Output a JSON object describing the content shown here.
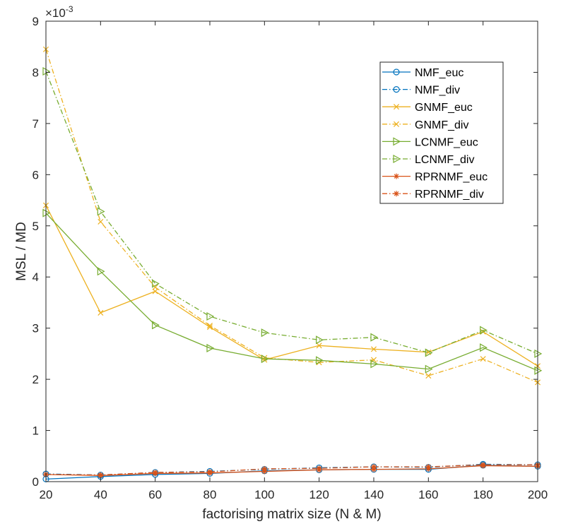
{
  "chart_data": {
    "type": "line",
    "title": "",
    "xlabel": "factorising matrix size (N & M)",
    "ylabel": "MSL / MD",
    "exponent_label": "×10",
    "exponent_power": "-3",
    "x": [
      20,
      40,
      60,
      80,
      100,
      120,
      140,
      160,
      180,
      200
    ],
    "xlim": [
      20,
      200
    ],
    "ylim": [
      0,
      9
    ],
    "xticks": [
      "20",
      "40",
      "60",
      "80",
      "100",
      "120",
      "140",
      "160",
      "180",
      "200"
    ],
    "yticks": [
      "0",
      "1",
      "2",
      "3",
      "4",
      "5",
      "6",
      "7",
      "8",
      "9"
    ],
    "legend_position": "top-right",
    "series": [
      {
        "name": "NMF_euc",
        "color": "#0072BD",
        "dash": "solid",
        "marker": "circle",
        "values": [
          0.05,
          0.1,
          0.14,
          0.16,
          0.21,
          0.23,
          0.24,
          0.24,
          0.32,
          0.3
        ]
      },
      {
        "name": "NMF_div",
        "color": "#0072BD",
        "dash": "dashdot",
        "marker": "circle",
        "values": [
          0.15,
          0.13,
          0.18,
          0.2,
          0.24,
          0.27,
          0.29,
          0.28,
          0.34,
          0.33
        ]
      },
      {
        "name": "GNMF_euc",
        "color": "#EDB120",
        "dash": "solid",
        "marker": "x",
        "values": [
          5.4,
          3.3,
          3.72,
          3.02,
          2.38,
          2.66,
          2.59,
          2.53,
          2.93,
          2.26
        ]
      },
      {
        "name": "GNMF_div",
        "color": "#EDB120",
        "dash": "dashdot",
        "marker": "x",
        "values": [
          8.45,
          5.08,
          3.8,
          3.05,
          2.42,
          2.33,
          2.38,
          2.07,
          2.4,
          1.94
        ]
      },
      {
        "name": "LCNMF_euc",
        "color": "#77AC30",
        "dash": "solid",
        "marker": "triangle-right",
        "values": [
          5.25,
          4.11,
          3.06,
          2.61,
          2.4,
          2.37,
          2.3,
          2.2,
          2.62,
          2.17
        ]
      },
      {
        "name": "LCNMF_div",
        "color": "#77AC30",
        "dash": "dashdot",
        "marker": "triangle-right",
        "values": [
          8.02,
          5.28,
          3.87,
          3.23,
          2.91,
          2.77,
          2.82,
          2.52,
          2.96,
          2.5
        ]
      },
      {
        "name": "RPRNMF_euc",
        "color": "#D95319",
        "dash": "solid",
        "marker": "asterisk",
        "values": [
          0.14,
          0.12,
          0.16,
          0.17,
          0.2,
          0.23,
          0.24,
          0.25,
          0.31,
          0.3
        ]
      },
      {
        "name": "RPRNMF_div",
        "color": "#D95319",
        "dash": "dashdot",
        "marker": "asterisk",
        "values": [
          0.14,
          0.13,
          0.18,
          0.19,
          0.25,
          0.26,
          0.29,
          0.29,
          0.33,
          0.33
        ]
      }
    ]
  }
}
